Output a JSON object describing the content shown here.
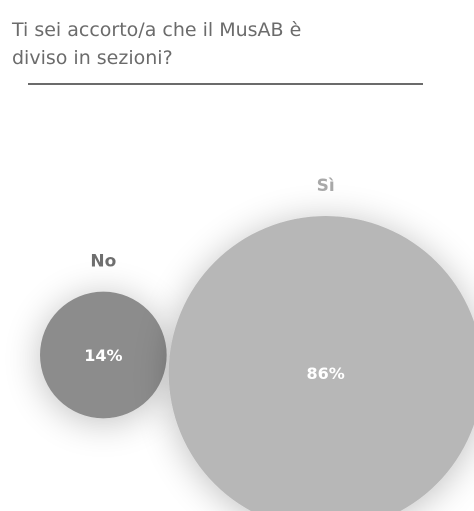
{
  "question": {
    "line1": "Ti sei accorto/a che il MusAB è",
    "line2": "diviso in sezioni?"
  },
  "chart_data": {
    "type": "bubble",
    "title": "Ti sei accorto/a che il MusAB è diviso in sezioni?",
    "series": [
      {
        "category": "No",
        "value": 14,
        "label": "14%",
        "color": "#8c8c8c",
        "label_color": "#6e6e6e"
      },
      {
        "category": "Sì",
        "value": 86,
        "label": "86%",
        "color": "#b7b7b7",
        "label_color": "#a8a8a8"
      }
    ],
    "unit": "%",
    "legend": "none"
  }
}
